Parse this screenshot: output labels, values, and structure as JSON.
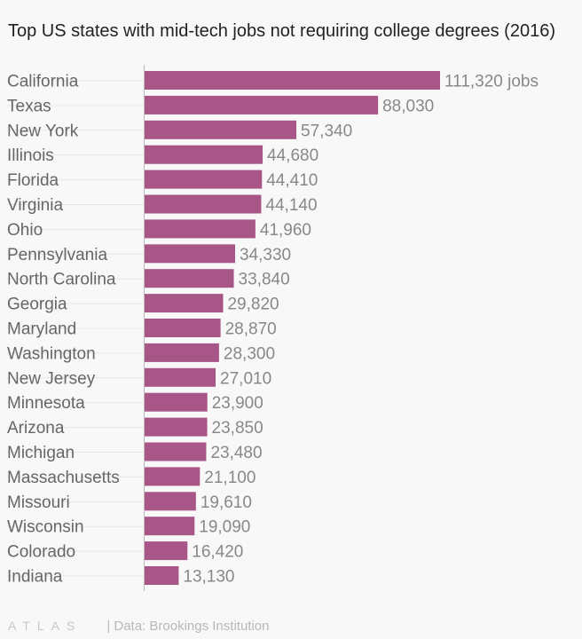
{
  "title": "Top US states with mid-tech jobs not requiring college degrees (2016)",
  "footer": {
    "logo": "ATLAS",
    "source": "| Data: Brookings Institution"
  },
  "colors": {
    "bar": "#a85688",
    "label": "#666666",
    "value": "#888888",
    "axis": "#bbbbbb",
    "leader": "#e6e6e6"
  },
  "chart_data": {
    "type": "bar",
    "orientation": "horizontal",
    "title": "Top US states with mid-tech jobs not requiring college degrees (2016)",
    "xlabel": "",
    "ylabel": "",
    "unit_suffix_first": " jobs",
    "xlim": [
      0,
      111320
    ],
    "categories": [
      "California",
      "Texas",
      "New York",
      "Illinois",
      "Florida",
      "Virginia",
      "Ohio",
      "Pennsylvania",
      "North Carolina",
      "Georgia",
      "Maryland",
      "Washington",
      "New Jersey",
      "Minnesota",
      "Arizona",
      "Michigan",
      "Massachusetts",
      "Missouri",
      "Wisconsin",
      "Colorado",
      "Indiana"
    ],
    "values": [
      111320,
      88030,
      57340,
      44680,
      44410,
      44140,
      41960,
      34330,
      33840,
      29820,
      28870,
      28300,
      27010,
      23900,
      23850,
      23480,
      21100,
      19610,
      19090,
      16420,
      13130
    ],
    "value_labels": [
      "111,320 jobs",
      "88,030",
      "57,340",
      "44,680",
      "44,410",
      "44,140",
      "41,960",
      "34,330",
      "33,840",
      "29,820",
      "28,870",
      "28,300",
      "27,010",
      "23,900",
      "23,850",
      "23,480",
      "21,100",
      "19,610",
      "19,090",
      "16,420",
      "13,130"
    ]
  }
}
